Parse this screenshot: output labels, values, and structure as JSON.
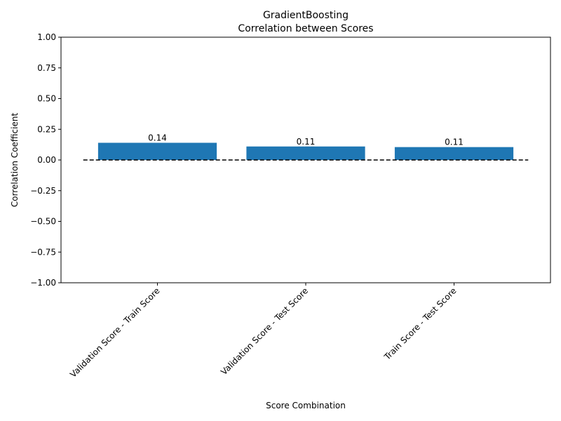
{
  "chart_data": {
    "type": "bar",
    "title": "GradientBoosting",
    "subtitle": "Correlation between Scores",
    "xlabel": "Score Combination",
    "ylabel": "Correlation Coefficient",
    "categories": [
      "Validation Score - Train Score",
      "Validation Score - Test Score",
      "Train Score - Test Score"
    ],
    "values": [
      0.14,
      0.11,
      0.105
    ],
    "value_labels": [
      "0.14",
      "0.11",
      "0.11"
    ],
    "ylim": [
      -1.0,
      1.0
    ],
    "yticks": [
      -1.0,
      -0.75,
      -0.5,
      -0.25,
      0.0,
      0.25,
      0.5,
      0.75,
      1.0
    ],
    "ytick_labels": [
      "−1.00",
      "−0.75",
      "−0.50",
      "−0.25",
      "0.00",
      "0.25",
      "0.50",
      "0.75",
      "1.00"
    ],
    "reference_line": {
      "y": 0,
      "style": "dashed",
      "color": "#000000"
    },
    "bar_color": "#1f77b4",
    "grid": false,
    "legend": "none"
  }
}
